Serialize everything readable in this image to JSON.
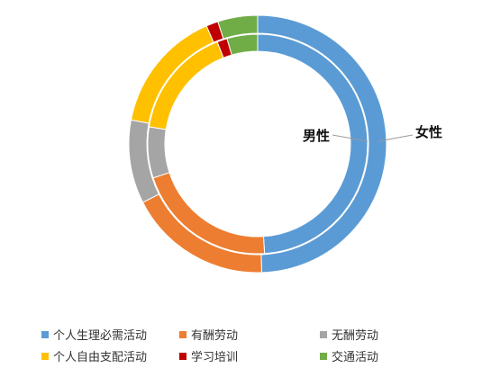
{
  "chart_data": {
    "type": "donut",
    "title": "",
    "categories": [
      "个人生理必需活动",
      "有酬劳动",
      "无酬劳动",
      "个人自由支配活动",
      "学习培训",
      "交通活动"
    ],
    "colors": [
      "#5B9BD5",
      "#ED7D31",
      "#A5A5A5",
      "#FFC000",
      "#C00000",
      "#70AD47"
    ],
    "series": [
      {
        "name": "女性",
        "ring": "outer",
        "values": [
          49.5,
          18.0,
          10.5,
          15.5,
          1.5,
          5.0
        ]
      },
      {
        "name": "男性",
        "ring": "inner",
        "values": [
          49.0,
          21.0,
          7.5,
          16.5,
          1.5,
          4.5
        ]
      }
    ],
    "legend": {
      "position": "bottom"
    }
  }
}
